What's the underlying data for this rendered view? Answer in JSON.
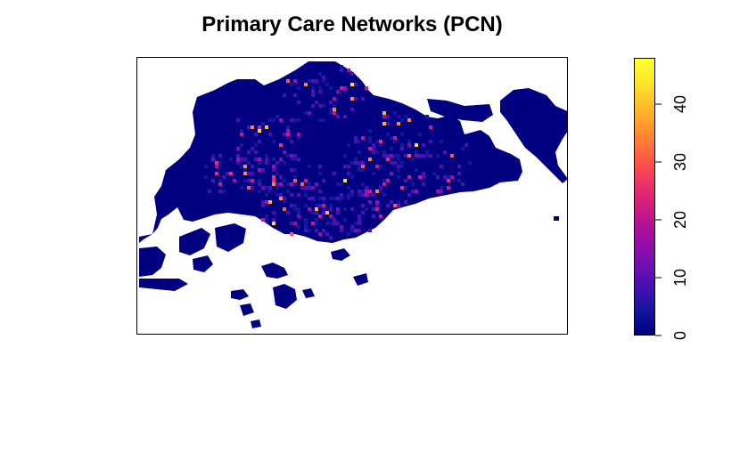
{
  "title": "Primary Care Networks (PCN)",
  "legend": {
    "ticks": [
      {
        "value": 0,
        "label": "0"
      },
      {
        "value": 10,
        "label": "10"
      },
      {
        "value": 20,
        "label": "20"
      },
      {
        "value": 30,
        "label": "30"
      },
      {
        "value": 40,
        "label": "40"
      }
    ],
    "range": [
      0,
      48
    ],
    "palette": [
      "#000080",
      "#1616A0",
      "#4B10B4",
      "#7A0FB0",
      "#A50EA0",
      "#CC1A85",
      "#ED3168",
      "#FF5A45",
      "#FF8A2D",
      "#FFB82A",
      "#FFE42A",
      "#FFFF30"
    ]
  },
  "map": {
    "base_color": "#000080",
    "background": "#ffffff",
    "grid": "off",
    "axes": "none"
  }
}
